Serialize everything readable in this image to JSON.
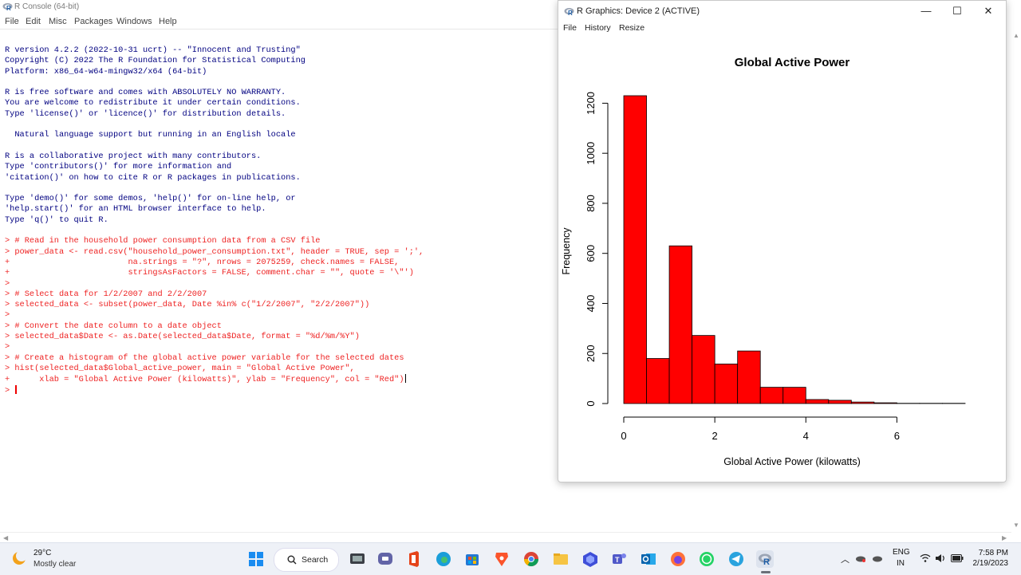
{
  "console": {
    "title": "R Console (64-bit)",
    "menu": [
      "File",
      "Edit",
      "Misc",
      "Packages",
      "Windows",
      "Help"
    ],
    "lines": [
      {
        "t": "R version 4.2.2 (2022-10-31 ucrt) -- \"Innocent and Trusting\"",
        "c": "out"
      },
      {
        "t": "Copyright (C) 2022 The R Foundation for Statistical Computing",
        "c": "out"
      },
      {
        "t": "Platform: x86_64-w64-mingw32/x64 (64-bit)",
        "c": "out"
      },
      {
        "t": "",
        "c": "out"
      },
      {
        "t": "R is free software and comes with ABSOLUTELY NO WARRANTY.",
        "c": "out"
      },
      {
        "t": "You are welcome to redistribute it under certain conditions.",
        "c": "out"
      },
      {
        "t": "Type 'license()' or 'licence()' for distribution details.",
        "c": "out"
      },
      {
        "t": "",
        "c": "out"
      },
      {
        "t": "  Natural language support but running in an English locale",
        "c": "out"
      },
      {
        "t": "",
        "c": "out"
      },
      {
        "t": "R is a collaborative project with many contributors.",
        "c": "out"
      },
      {
        "t": "Type 'contributors()' for more information and",
        "c": "out"
      },
      {
        "t": "'citation()' on how to cite R or R packages in publications.",
        "c": "out"
      },
      {
        "t": "",
        "c": "out"
      },
      {
        "t": "Type 'demo()' for some demos, 'help()' for on-line help, or",
        "c": "out"
      },
      {
        "t": "'help.start()' for an HTML browser interface to help.",
        "c": "out"
      },
      {
        "t": "Type 'q()' to quit R.",
        "c": "out"
      },
      {
        "t": "",
        "c": "out"
      },
      {
        "t": "> # Read in the household power consumption data from a CSV file",
        "c": "in"
      },
      {
        "t": "> power_data <- read.csv(\"household_power_consumption.txt\", header = TRUE, sep = ';',",
        "c": "in"
      },
      {
        "t": "+                        na.strings = \"?\", nrows = 2075259, check.names = FALSE,",
        "c": "in"
      },
      {
        "t": "+                        stringsAsFactors = FALSE, comment.char = \"\", quote = '\\\"')",
        "c": "in"
      },
      {
        "t": ">",
        "c": "in"
      },
      {
        "t": "> # Select data for 1/2/2007 and 2/2/2007",
        "c": "in"
      },
      {
        "t": "> selected_data <- subset(power_data, Date %in% c(\"1/2/2007\", \"2/2/2007\"))",
        "c": "in"
      },
      {
        "t": ">",
        "c": "in"
      },
      {
        "t": "> # Convert the date column to a date object",
        "c": "in"
      },
      {
        "t": "> selected_data$Date <- as.Date(selected_data$Date, format = \"%d/%m/%Y\")",
        "c": "in"
      },
      {
        "t": ">",
        "c": "in"
      },
      {
        "t": "> # Create a histogram of the global active power variable for the selected dates",
        "c": "in"
      },
      {
        "t": "> hist(selected_data$Global_active_power, main = \"Global Active Power\",",
        "c": "in"
      },
      {
        "t": "+      xlab = \"Global Active Power (kilowatts)\", ylab = \"Frequency\", col = \"Red\")",
        "c": "in",
        "caret": true
      },
      {
        "t": "> ",
        "c": "in",
        "prompt": true
      }
    ]
  },
  "graphics": {
    "title": "R Graphics: Device 2 (ACTIVE)",
    "menu": [
      "File",
      "History",
      "Resize"
    ],
    "controls": {
      "minimize": "—",
      "maximize": "☐",
      "close": "✕"
    }
  },
  "chart_data": {
    "type": "bar",
    "title": "Global Active Power",
    "xlabel": "Global Active Power (kilowatts)",
    "ylabel": "Frequency",
    "bar_color": "#ff0000",
    "bin_width": 0.5,
    "bin_starts": [
      0,
      0.5,
      1.0,
      1.5,
      2.0,
      2.5,
      3.0,
      3.5,
      4.0,
      4.5,
      5.0,
      5.5,
      6.0,
      6.5,
      7.0
    ],
    "values": [
      1230,
      180,
      630,
      272,
      158,
      210,
      65,
      65,
      16,
      13,
      6,
      3,
      1,
      1,
      1
    ],
    "xlim": [
      0,
      7.5
    ],
    "ylim": [
      0,
      1230
    ],
    "xticks": [
      0,
      2,
      4,
      6
    ],
    "yticks": [
      0,
      200,
      400,
      600,
      800,
      1000,
      1200
    ]
  },
  "taskbar": {
    "weather_temp": "29°C",
    "weather_desc": "Mostly clear",
    "search_label": "Search",
    "lang_top": "ENG",
    "lang_bottom": "IN",
    "time": "7:58 PM",
    "date": "2/19/2023",
    "apps": [
      "task-view-icon",
      "teams-chat-icon",
      "office-icon",
      "edge-icon",
      "store-icon",
      "brave-icon",
      "chrome-icon",
      "file-explorer-icon",
      "virtualbox-icon",
      "teams-icon",
      "outlook-icon",
      "firefox-icon",
      "whatsapp-icon",
      "telegram-icon",
      "r-app-icon"
    ]
  }
}
